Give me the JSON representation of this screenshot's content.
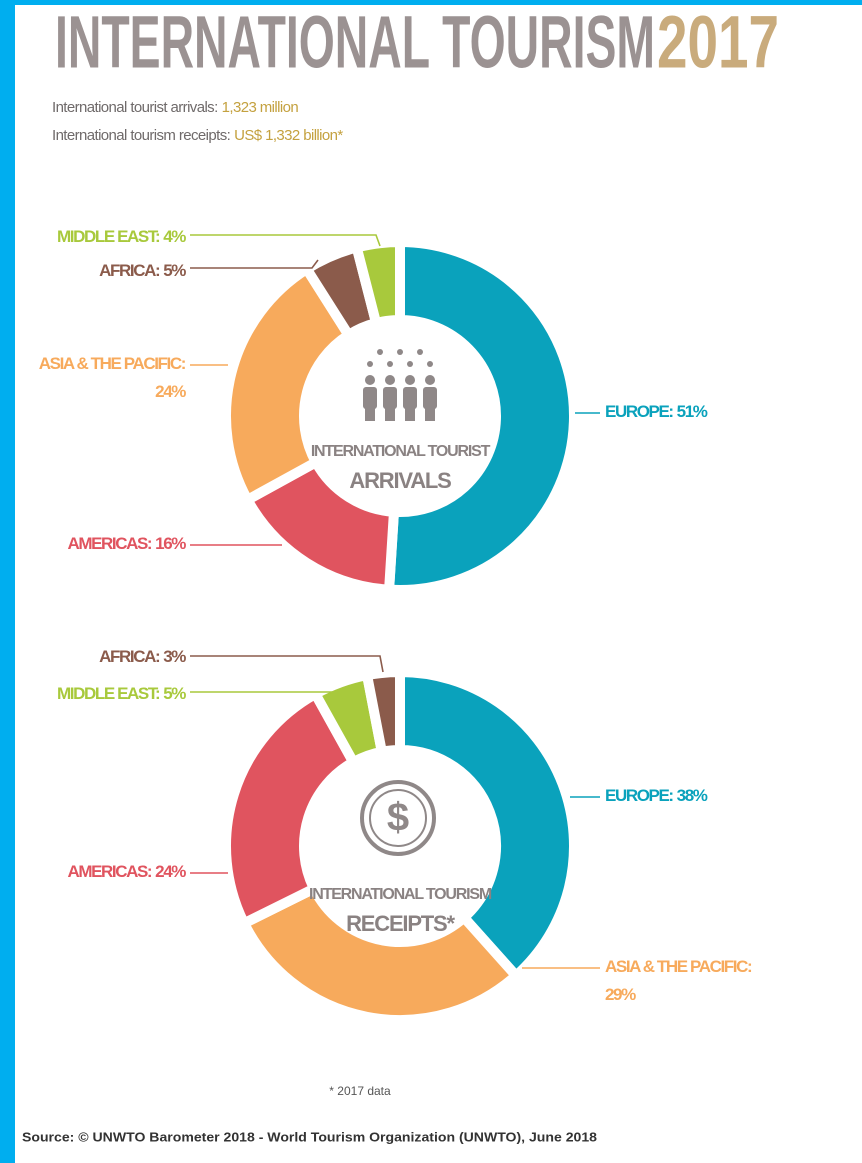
{
  "title": {
    "main": "INTERNATIONAL TOURISM",
    "year": "2017"
  },
  "subtitle": [
    {
      "label": "International tourist arrivals:",
      "value": "1,323 million"
    },
    {
      "label": "International tourism receipts:",
      "value": "US$ 1,332 billion*"
    }
  ],
  "chart_data": [
    {
      "type": "donut",
      "center_text": [
        "INTERNATIONAL TOURIST",
        "ARRIVALS"
      ],
      "categories": [
        "EUROPE:",
        "AMERICAS:",
        "ASIA & THE PACIFIC:",
        "AFRICA:",
        "MIDDLE EAST:"
      ],
      "values": [
        51,
        16,
        24,
        5,
        4
      ],
      "value_labels": [
        "51%",
        "16%",
        "24%",
        "5%",
        "4%"
      ],
      "colors": [
        "#0aa2bc",
        "#e0545f",
        "#f7aa5c",
        "#8b5b4b",
        "#a8c93c"
      ]
    },
    {
      "type": "donut",
      "center_text": [
        "INTERNATIONAL TOURISM",
        "RECEIPTS*"
      ],
      "categories": [
        "EUROPE:",
        "ASIA & THE PACIFIC:",
        "AMERICAS:",
        "MIDDLE EAST:",
        "AFRICA:"
      ],
      "values": [
        38,
        29,
        24,
        5,
        3
      ],
      "value_labels": [
        "38%",
        "29%",
        "24%",
        "5%",
        "3%"
      ],
      "colors": [
        "#0aa2bc",
        "#f7aa5c",
        "#e0545f",
        "#a8c93c",
        "#8b5b4b"
      ]
    }
  ],
  "note": "* 2017 data",
  "source": "Source: © UNWTO Barometer 2018 - World Tourism Organization (UNWTO), June 2018"
}
